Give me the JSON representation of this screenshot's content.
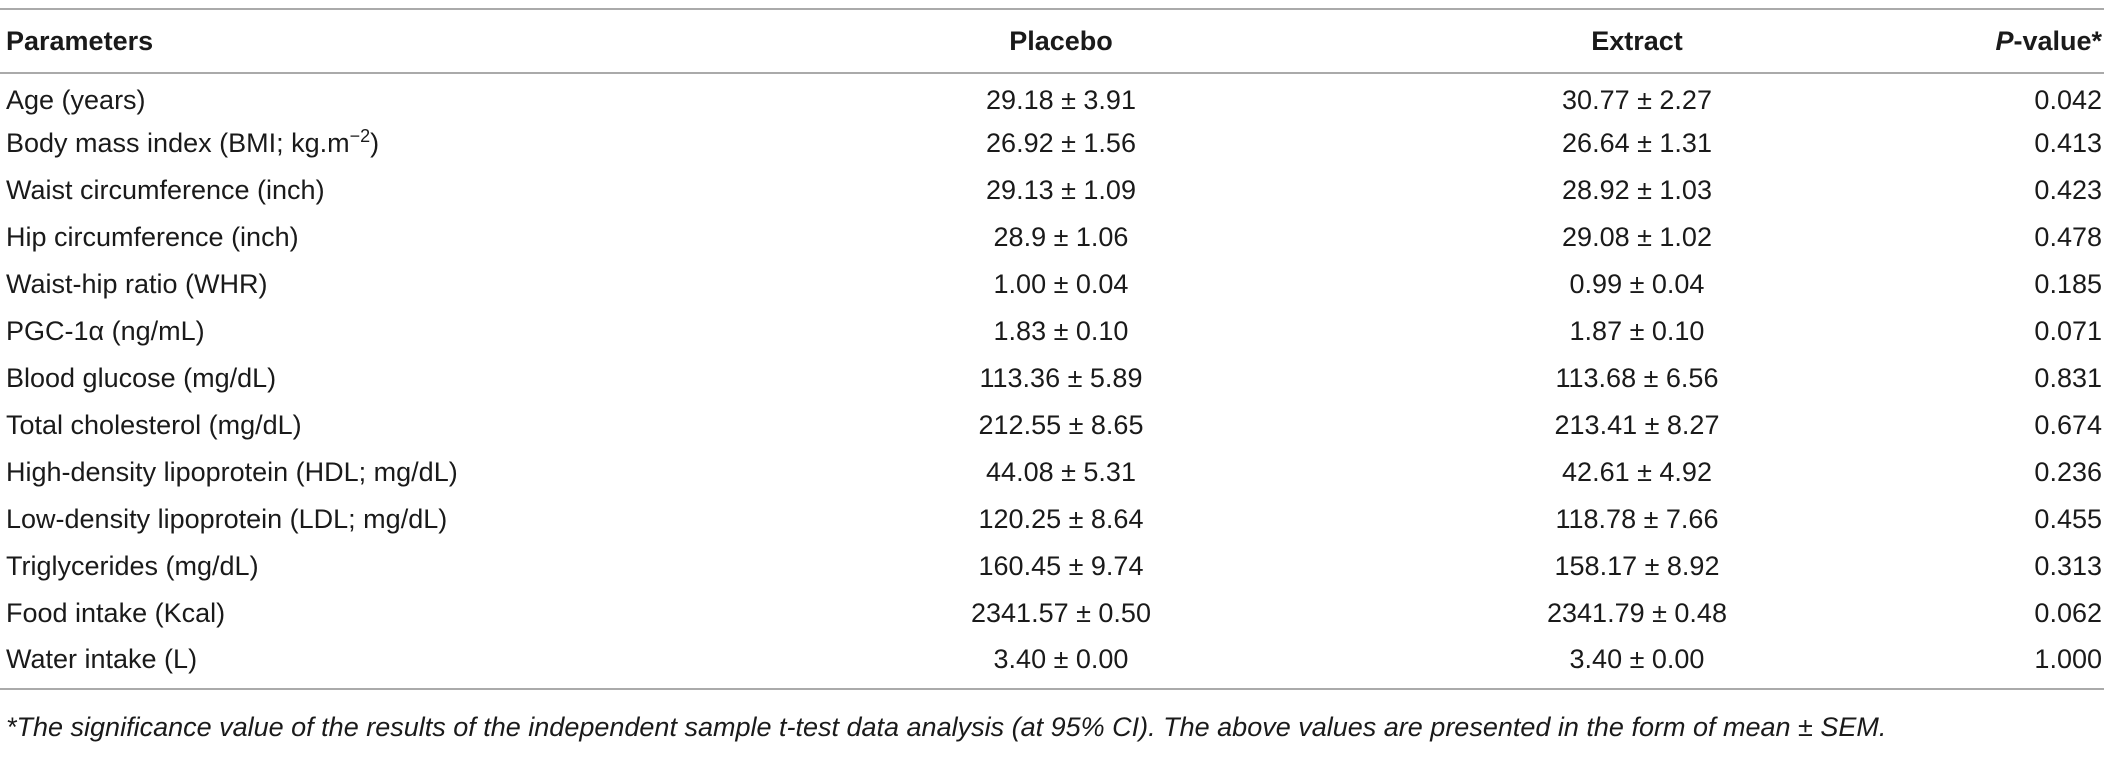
{
  "table": {
    "headers": {
      "parameters": "Parameters",
      "placebo": "Placebo",
      "extract": "Extract",
      "p_value_italic": "P",
      "p_value_rest": "-value*"
    },
    "rows": [
      {
        "parameter": "Age (years)",
        "placebo": "29.18 ± 3.91",
        "extract": "30.77 ± 2.27",
        "p": "0.042"
      },
      {
        "parameter": "Body mass index (BMI; kg.m",
        "parameter_sup": "−2",
        "parameter_suffix": ")",
        "placebo": "26.92 ± 1.56",
        "extract": "26.64 ± 1.31",
        "p": "0.413"
      },
      {
        "parameter": "Waist circumference (inch)",
        "placebo": "29.13 ± 1.09",
        "extract": "28.92 ± 1.03",
        "p": "0.423"
      },
      {
        "parameter": "Hip circumference (inch)",
        "placebo": "28.9 ± 1.06",
        "extract": "29.08 ± 1.02",
        "p": "0.478"
      },
      {
        "parameter": "Waist-hip ratio (WHR)",
        "placebo": "1.00 ± 0.04",
        "extract": "0.99 ± 0.04",
        "p": "0.185"
      },
      {
        "parameter": "PGC-1α (ng/mL)",
        "placebo": "1.83 ± 0.10",
        "extract": "1.87 ± 0.10",
        "p": "0.071"
      },
      {
        "parameter": "Blood glucose (mg/dL)",
        "placebo": "113.36 ± 5.89",
        "extract": "113.68 ± 6.56",
        "p": "0.831"
      },
      {
        "parameter": "Total cholesterol (mg/dL)",
        "placebo": "212.55 ± 8.65",
        "extract": "213.41 ± 8.27",
        "p": "0.674"
      },
      {
        "parameter": "High-density lipoprotein (HDL; mg/dL)",
        "placebo": "44.08 ± 5.31",
        "extract": "42.61 ± 4.92",
        "p": "0.236"
      },
      {
        "parameter": "Low-density lipoprotein (LDL; mg/dL)",
        "placebo": "120.25 ± 8.64",
        "extract": "118.78 ± 7.66",
        "p": "0.455"
      },
      {
        "parameter": "Triglycerides (mg/dL)",
        "placebo": "160.45 ± 9.74",
        "extract": "158.17 ± 8.92",
        "p": "0.313"
      },
      {
        "parameter": "Food intake (Kcal)",
        "placebo": "2341.57 ± 0.50",
        "extract": "2341.79 ± 0.48",
        "p": "0.062"
      },
      {
        "parameter": "Water intake (L)",
        "placebo": "3.40 ± 0.00",
        "extract": "3.40 ± 0.00",
        "p": "1.000"
      }
    ]
  },
  "footnote": "*The significance value of the results of the independent sample t-test data analysis (at 95% CI). The above values are presented in the form of mean ± SEM."
}
